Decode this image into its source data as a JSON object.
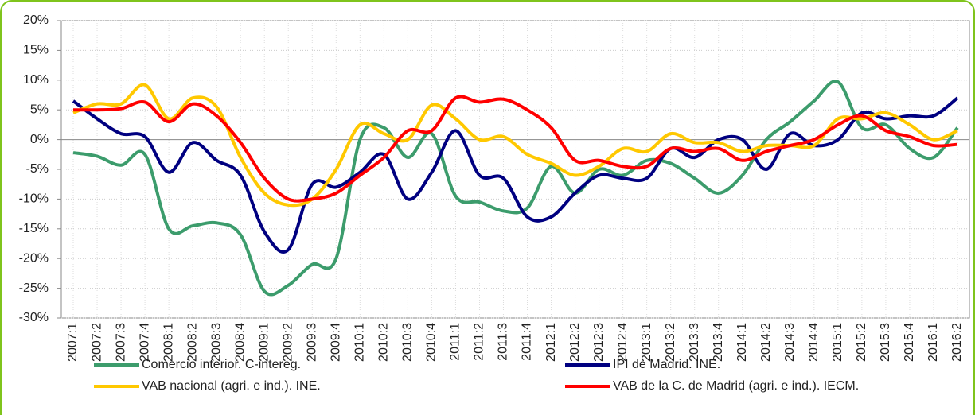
{
  "chart_data": {
    "type": "line",
    "categories": [
      "2007:1",
      "2007:2",
      "2007:3",
      "2007:4",
      "2008:1",
      "2008:2",
      "2008:3",
      "2008:4",
      "2009:1",
      "2009:2",
      "2009:3",
      "2009:4",
      "2010:1",
      "2010:2",
      "2010:3",
      "2010:4",
      "2011:1",
      "2011:2",
      "2011:3",
      "2011:4",
      "2012:1",
      "2012:2",
      "2012:3",
      "2012:4",
      "2013:1",
      "2013:2",
      "2013:3",
      "2013:4",
      "2014:1",
      "2014:2",
      "2014:3",
      "2014:4",
      "2015:1",
      "2015:2",
      "2015:3",
      "2015:4",
      "2016:1",
      "2016:2"
    ],
    "series": [
      {
        "name": "Comercio interior. C-intereg.",
        "color": "#3c9c6c",
        "values": [
          -2.2,
          -2.8,
          -4.3,
          -2.5,
          -15,
          -14.5,
          -14,
          -16,
          -25.5,
          -24.5,
          -21,
          -20,
          0,
          2,
          -3,
          1,
          -9.5,
          -10.5,
          -12,
          -11.5,
          -4.5,
          -9,
          -5,
          -6,
          -3.5,
          -4,
          -6.5,
          -9,
          -6,
          0,
          3,
          6.5,
          9.7,
          2,
          2.5,
          -1.5,
          -3,
          2
        ]
      },
      {
        "name": "IPI de Madrid. INE.",
        "color": "#000080",
        "values": [
          6.5,
          3.5,
          1,
          0.5,
          -5.5,
          -0.5,
          -3.5,
          -6,
          -15.5,
          -18.5,
          -7.5,
          -8,
          -5.5,
          -2.5,
          -10,
          -5.5,
          1.5,
          -6,
          -6.5,
          -13,
          -13,
          -9,
          -6,
          -6.5,
          -6.5,
          -1.5,
          -3,
          0,
          0,
          -5,
          1,
          -1,
          0,
          4.5,
          3.5,
          4,
          4,
          7
        ]
      },
      {
        "name": "VAB nacional (agri. e ind.). INE.",
        "color": "#ffc800",
        "values": [
          4.5,
          6,
          6,
          9.2,
          3.5,
          7,
          5.5,
          -3,
          -9,
          -11,
          -10,
          -5,
          2.5,
          1,
          0,
          5.8,
          3.5,
          0,
          0.5,
          -2.5,
          -4,
          -6,
          -4.5,
          -1.5,
          -2,
          1,
          -0.5,
          -0.5,
          -2,
          -1,
          -1,
          -1,
          3.5,
          3.5,
          4.5,
          2.5,
          0,
          1.5
        ]
      },
      {
        "name": "VAB de la C. de Madrid (agri. e ind.). IECM.",
        "color": "#ff0000",
        "values": [
          5,
          5,
          5.2,
          6.3,
          3,
          6,
          4,
          -0.5,
          -6.5,
          -10,
          -10,
          -9,
          -6,
          -3,
          1.5,
          1.5,
          7,
          6.3,
          6.8,
          5,
          2,
          -3.5,
          -3.5,
          -4.5,
          -4.5,
          -1.5,
          -2,
          -1.5,
          -3.5,
          -2,
          -1,
          0,
          2.5,
          4,
          1.5,
          0.5,
          -1,
          -0.8
        ]
      }
    ],
    "ylim": [
      -30,
      20
    ],
    "yticks": [
      {
        "value": -30,
        "label": "-30%"
      },
      {
        "value": -25,
        "label": "-25%"
      },
      {
        "value": -20,
        "label": "-20%"
      },
      {
        "value": -15,
        "label": "-15%"
      },
      {
        "value": -10,
        "label": "-10%"
      },
      {
        "value": -5,
        "label": "-5%"
      },
      {
        "value": 0,
        "label": "0%"
      },
      {
        "value": 5,
        "label": "5%"
      },
      {
        "value": 10,
        "label": "10%"
      },
      {
        "value": 15,
        "label": "15%"
      },
      {
        "value": 20,
        "label": "20%"
      }
    ],
    "grid": true,
    "legend": "bottom"
  }
}
